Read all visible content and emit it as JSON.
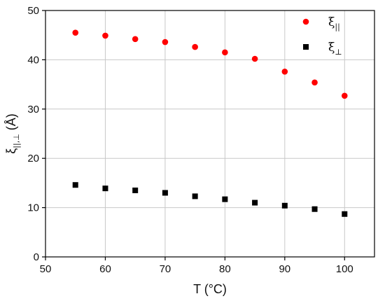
{
  "chart_data": {
    "type": "scatter",
    "xlabel": "T (°C)",
    "ylabel": {
      "base": "ξ",
      "sub": "||,⊥",
      "unit": " (Å)"
    },
    "xlim": [
      50,
      105
    ],
    "ylim": [
      0,
      50
    ],
    "xticks": [
      50,
      60,
      70,
      80,
      90,
      100
    ],
    "yticks": [
      0,
      10,
      20,
      30,
      40,
      50
    ],
    "grid": true,
    "legend_position": "top-right",
    "series": [
      {
        "name": "ξ||",
        "name_base": "ξ",
        "name_sub": "||",
        "marker": "circle",
        "color": "#ff0000",
        "x": [
          55,
          60,
          65,
          70,
          75,
          80,
          85,
          90,
          95,
          100
        ],
        "y": [
          45.5,
          44.9,
          44.2,
          43.6,
          42.6,
          41.5,
          40.2,
          37.6,
          35.4,
          32.7
        ]
      },
      {
        "name": "ξ⊥",
        "name_base": "ξ",
        "name_sub": "⊥",
        "marker": "square",
        "color": "#000000",
        "x": [
          55,
          60,
          65,
          70,
          75,
          80,
          85,
          90,
          95,
          100
        ],
        "y": [
          14.6,
          13.9,
          13.5,
          13.0,
          12.3,
          11.7,
          11.0,
          10.4,
          9.7,
          8.7
        ]
      }
    ]
  }
}
